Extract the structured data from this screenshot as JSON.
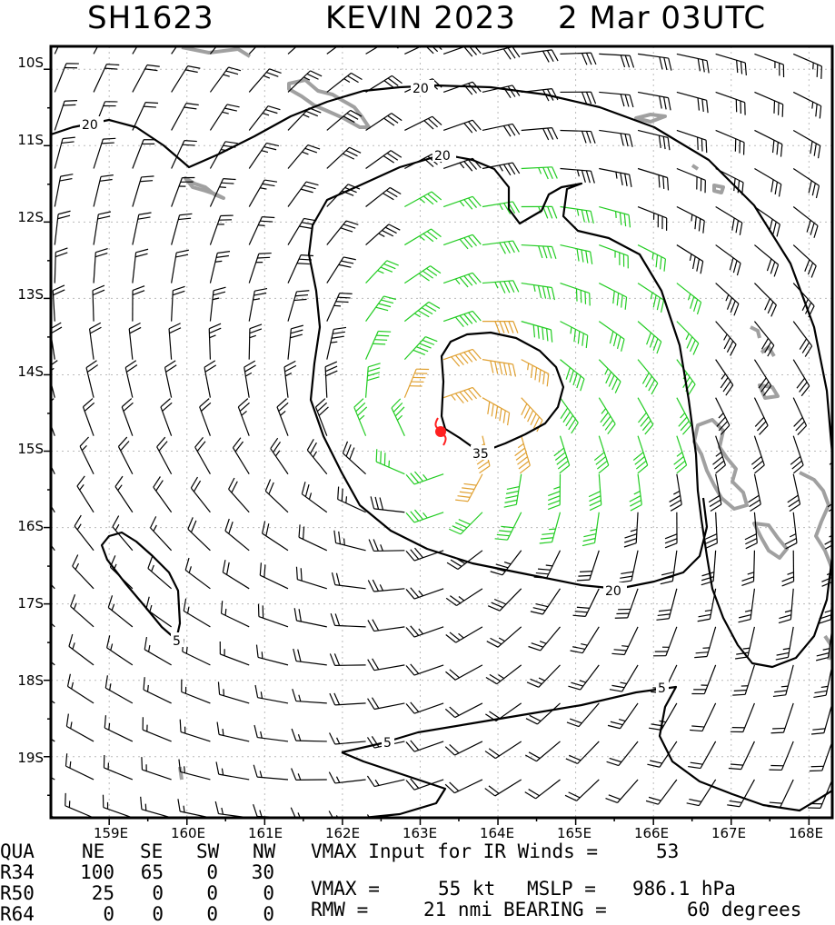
{
  "title": {
    "storm_id": "SH1623",
    "storm_name": "KEVIN 2023",
    "datetime": "2 Mar 03UTC"
  },
  "axes": {
    "lat_labels": [
      "10S",
      "11S",
      "12S",
      "13S",
      "14S",
      "15S",
      "16S",
      "17S",
      "18S",
      "19S"
    ],
    "lon_labels": [
      "159E",
      "160E",
      "161E",
      "162E",
      "163E",
      "164E",
      "165E",
      "166E",
      "167E",
      "168E"
    ],
    "lon_range": [
      158.25,
      168.3
    ],
    "lat_range": [
      -19.8,
      -9.7
    ]
  },
  "contour_labels": {
    "c20_a": "20",
    "c20_b": "20",
    "c20_c": "20",
    "c20_d": "20",
    "c35": "35",
    "c5_a": "5",
    "c5_b": "5",
    "c5_c": "5"
  },
  "center": {
    "lon": 163.3,
    "lat": -14.75
  },
  "colors": {
    "below_34kt": "#000000",
    "34_to_49kt": "#22cc22",
    "50_to_63kt": "#e0a030",
    "center_marker": "#ff2020",
    "land": "#999999"
  },
  "table": {
    "header": {
      "qua": "QUA",
      "ne": "NE",
      "se": "SE",
      "sw": "SW",
      "nw": "NW"
    },
    "rows": [
      {
        "label": "R34",
        "ne": "100",
        "se": "65",
        "sw": "0",
        "nw": "30"
      },
      {
        "label": "R50",
        "ne": "25",
        "se": "0",
        "sw": "0",
        "nw": "0"
      },
      {
        "label": "R64",
        "ne": "0",
        "se": "0",
        "sw": "0",
        "nw": "0"
      }
    ]
  },
  "summary": {
    "vmax_input_label": "VMAX Input for IR Winds =",
    "vmax_input_value": "53",
    "vmax_label": "VMAX =",
    "vmax_value": "55 kt",
    "mslp_label": "MSLP =",
    "mslp_value": "986.1 hPa",
    "rmw_label": "RMW =",
    "rmw_value": "21 nmi",
    "bearing_label": "BEARING =",
    "bearing_value": "60 degrees"
  }
}
